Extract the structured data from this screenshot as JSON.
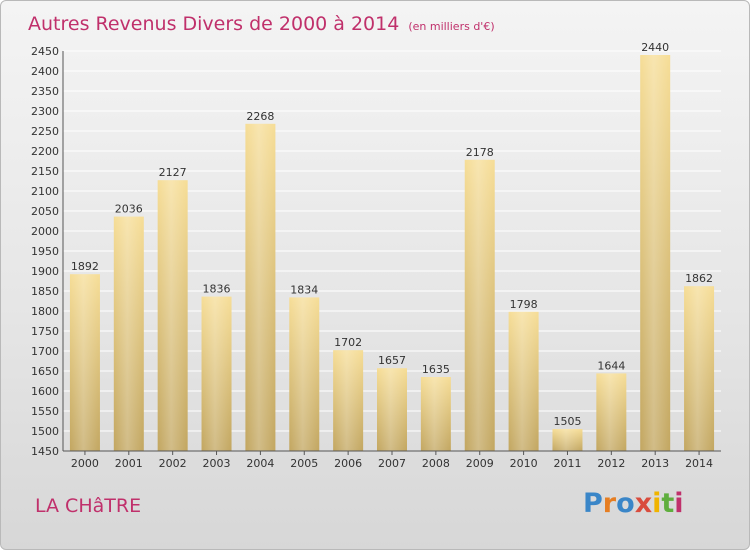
{
  "chart_data": {
    "type": "bar",
    "title": "Autres Revenus Divers de 2000 à 2014",
    "subtitle": "(en milliers d'€)",
    "categories": [
      "2000",
      "2001",
      "2002",
      "2003",
      "2004",
      "2005",
      "2006",
      "2007",
      "2008",
      "2009",
      "2010",
      "2011",
      "2012",
      "2013",
      "2014"
    ],
    "values": [
      1892,
      2036,
      2127,
      1836,
      2268,
      1834,
      1702,
      1657,
      1635,
      2178,
      1798,
      1505,
      1644,
      2440,
      1862
    ],
    "ylim": [
      1450,
      2450
    ],
    "ytick_step": 50,
    "grid": true,
    "data_labels": true,
    "bar_color": "#e6cc84"
  },
  "footer": {
    "place": "LA CHâTRE",
    "brand": "Proxiti",
    "brand_colors": [
      "#3a86c8",
      "#e67e22",
      "#3a86c8",
      "#d94c3d",
      "#f0b400",
      "#5fae3e",
      "#c0306b"
    ]
  }
}
